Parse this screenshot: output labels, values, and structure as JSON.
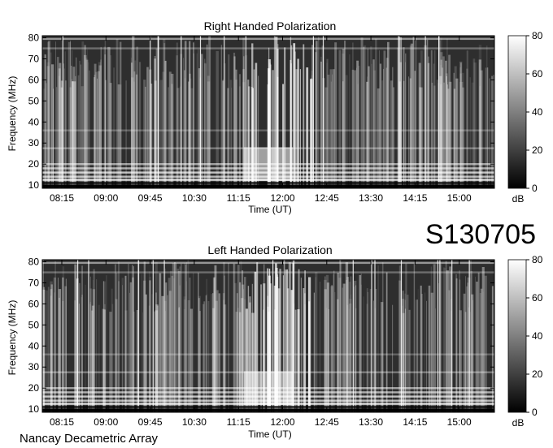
{
  "observation_id": "S130705",
  "instrument": "Nancay Decametric Array",
  "chart_data": [
    {
      "type": "heatmap",
      "title": "Right Handed Polarization",
      "xlabel": "Time (UT)",
      "ylabel": "Frequency (MHz)",
      "xticks": [
        "08:15",
        "09:00",
        "09:45",
        "10:30",
        "11:15",
        "12:00",
        "12:45",
        "13:30",
        "14:15",
        "15:00"
      ],
      "yticks": [
        "10",
        "20",
        "30",
        "40",
        "50",
        "60",
        "70",
        "80"
      ],
      "ylim": [
        8.5,
        81
      ],
      "colorbar": {
        "label": "dB",
        "ticks": [
          "0",
          "20",
          "40",
          "60",
          "80"
        ],
        "range": [
          0,
          80
        ],
        "colormap": "grayscale"
      },
      "colors": {
        "low": "#000000",
        "high": "#ffffff"
      }
    },
    {
      "type": "heatmap",
      "title": "Left Handed Polarization",
      "xlabel": "Time (UT)",
      "ylabel": "Frequency (MHz)",
      "xticks": [
        "08:15",
        "09:00",
        "09:45",
        "10:30",
        "11:15",
        "12:00",
        "12:45",
        "13:30",
        "14:15",
        "15:00"
      ],
      "yticks": [
        "10",
        "20",
        "30",
        "40",
        "50",
        "60",
        "70",
        "80"
      ],
      "ylim": [
        8.5,
        81
      ],
      "colorbar": {
        "label": "dB",
        "ticks": [
          "0",
          "20",
          "40",
          "60",
          "80"
        ],
        "range": [
          0,
          80
        ],
        "colormap": "grayscale"
      },
      "colors": {
        "low": "#000000",
        "high": "#ffffff"
      }
    }
  ]
}
